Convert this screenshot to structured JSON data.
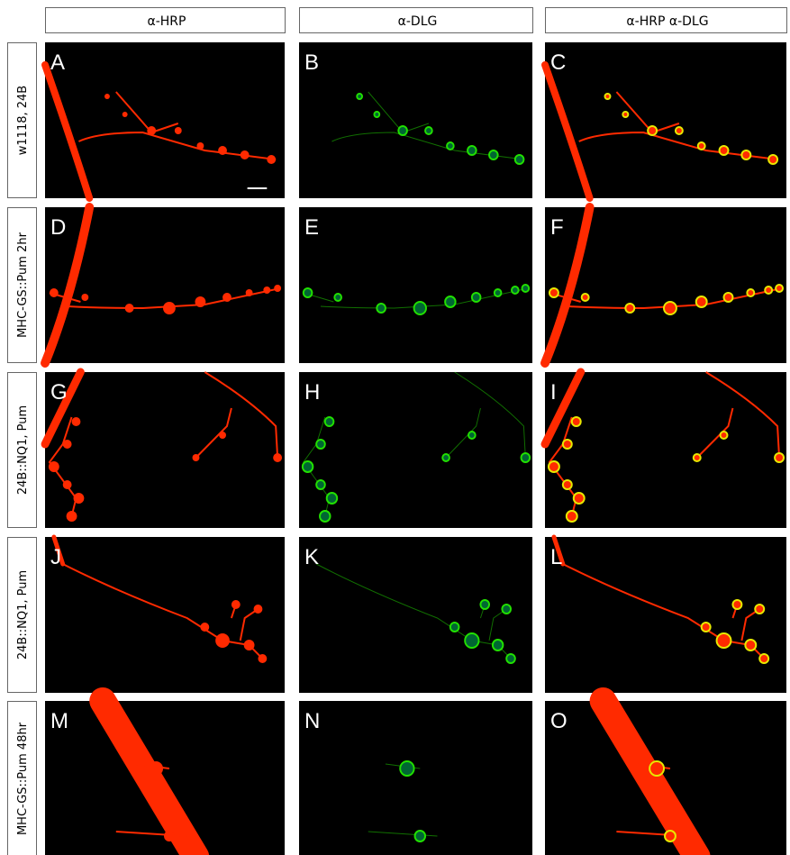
{
  "column_headers": [
    "α-HRP",
    "α-DLG",
    "α-HRP α-DLG"
  ],
  "rows": [
    {
      "label": "w1118, 24B",
      "panels": [
        "A",
        "B",
        "C"
      ]
    },
    {
      "label": "MHC-GS::Pum 2hr",
      "panels": [
        "D",
        "E",
        "F"
      ]
    },
    {
      "label": "24B::NQ1, Pum",
      "panels": [
        "G",
        "H",
        "I"
      ]
    },
    {
      "label": "24B::NQ1, Pum",
      "panels": [
        "J",
        "K",
        "L"
      ]
    },
    {
      "label": "MHC-GS::Pum 48hr",
      "panels": [
        "M",
        "N",
        "O"
      ]
    }
  ]
}
